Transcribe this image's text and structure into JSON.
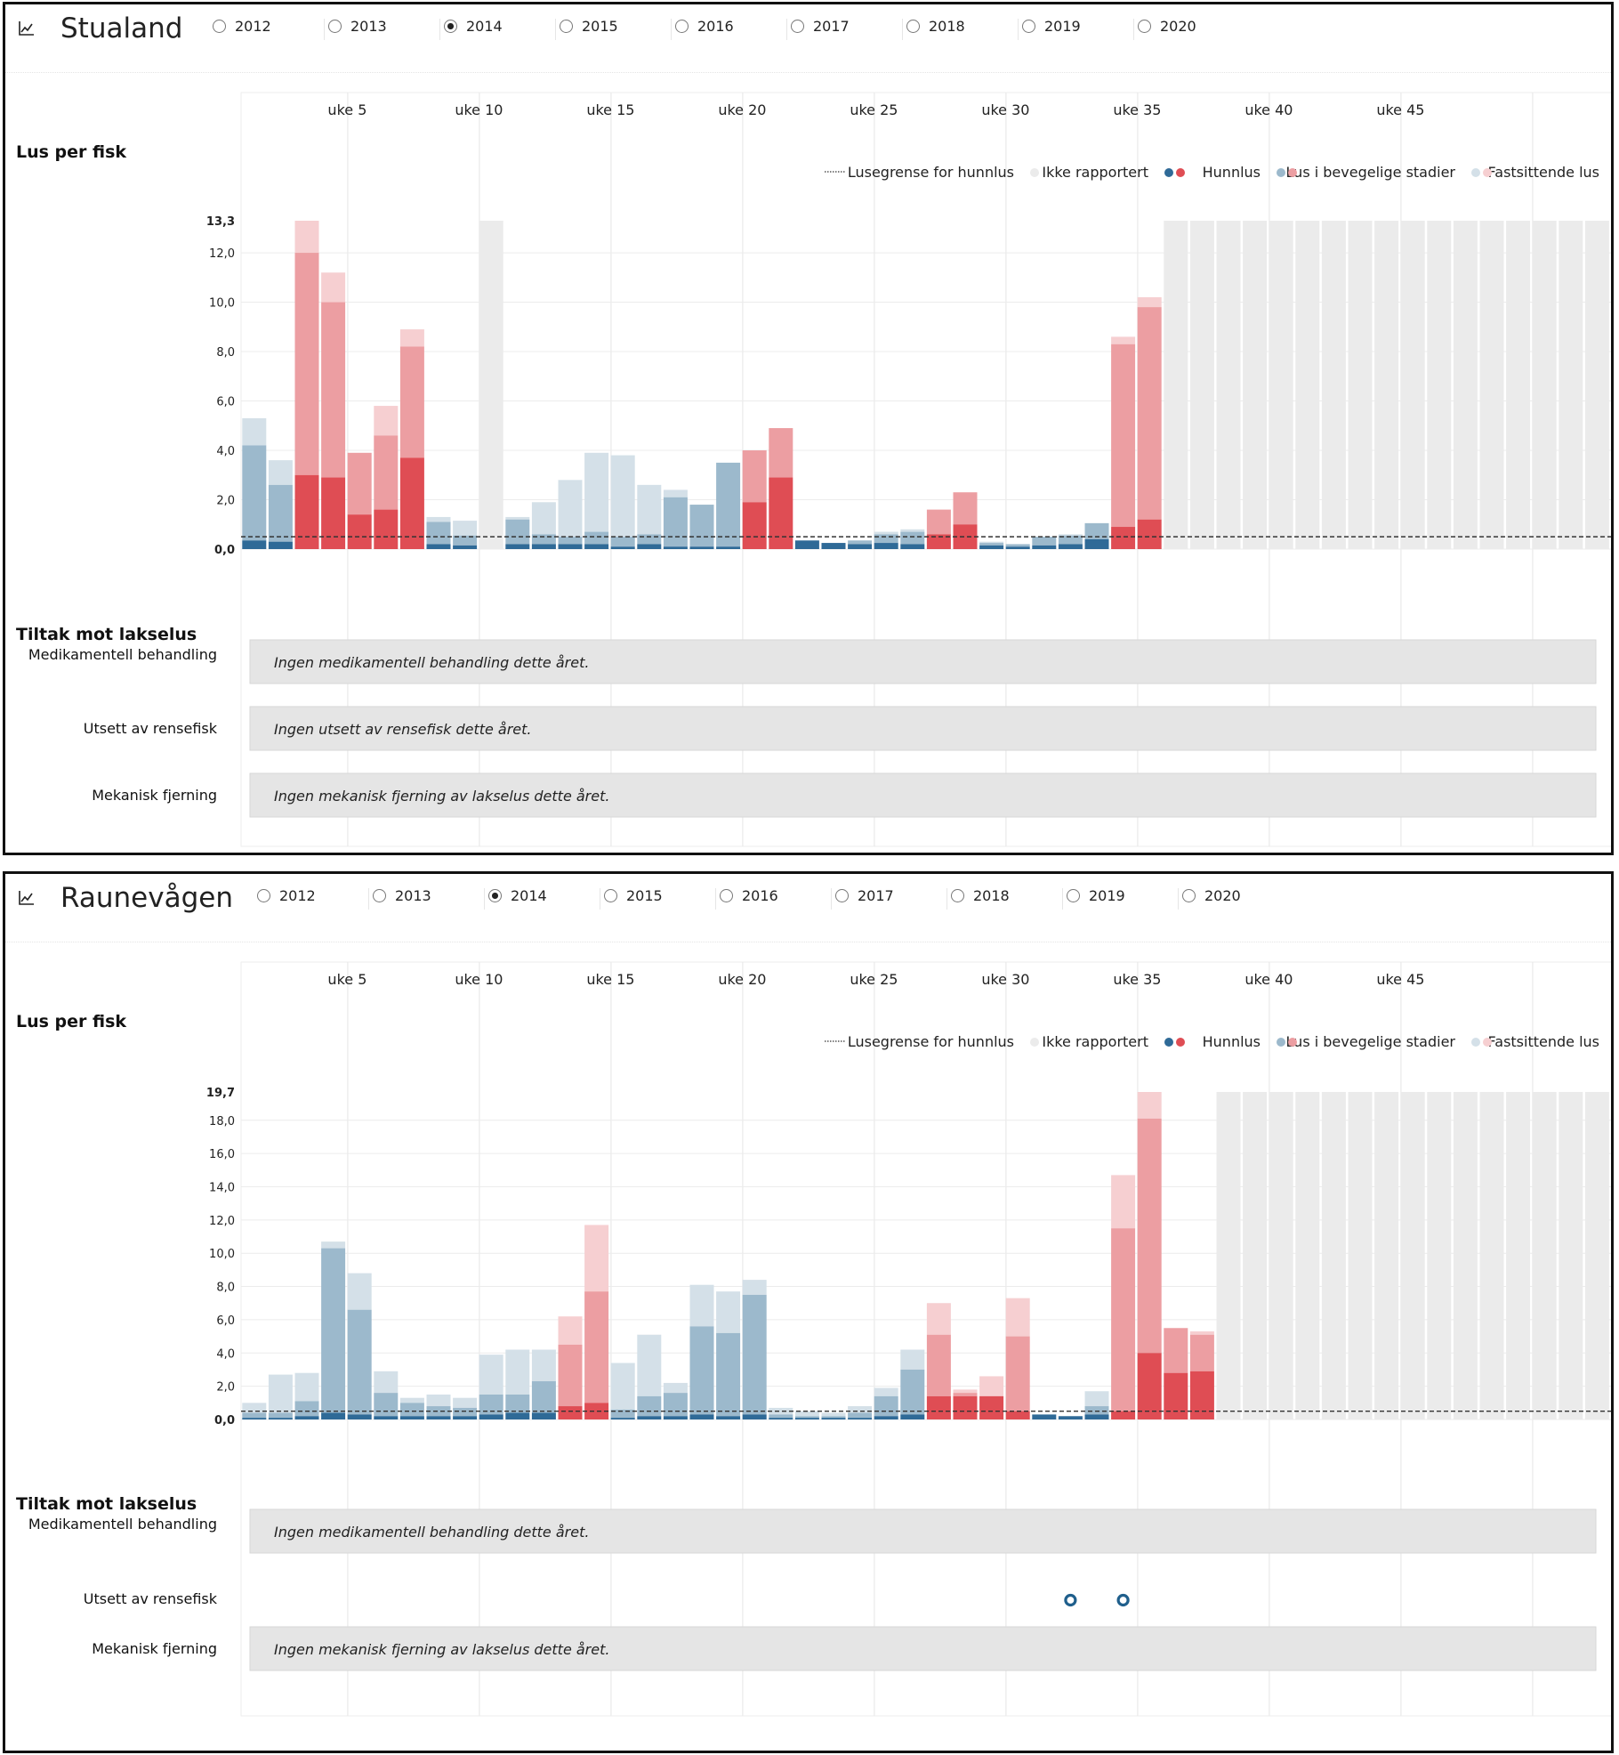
{
  "panels": [
    {
      "site": "Stualand",
      "icon": "line-chart-icon",
      "years": [
        "2012",
        "2013",
        "2014",
        "2015",
        "2016",
        "2017",
        "2018",
        "2019",
        "2020"
      ],
      "selected_year": "2014",
      "lus_label": "Lus per fisk",
      "week_labels": [
        "uke 5",
        "uke 10",
        "uke 15",
        "uke 20",
        "uke 25",
        "uke 30",
        "uke 35",
        "uke 40",
        "uke 45"
      ],
      "legend": {
        "limit": "Lusegrense for hunnlus",
        "not_reported": "Ikke rapportert",
        "female": "Hunnlus",
        "mobile": "Lus i bevegelige stadier",
        "attached": "Fastsittende lus"
      },
      "tiltak_label": "Tiltak mot lakselus",
      "rows": {
        "med": {
          "label": "Medikamentell behandling",
          "text": "Ingen medikamentell behandling dette året."
        },
        "rense": {
          "label": "Utsett av rensefisk",
          "text": "Ingen utsett av rensefisk dette året."
        },
        "mek": {
          "label": "Mekanisk fjerning",
          "text": "Ingen mekanisk fjerning av lakselus dette året."
        }
      },
      "chart_data": {
        "type": "bar",
        "stacked": true,
        "x_label_prefix": "uke",
        "x": [
          1,
          2,
          3,
          4,
          5,
          6,
          7,
          8,
          9,
          10,
          11,
          12,
          13,
          14,
          15,
          16,
          17,
          18,
          19,
          20,
          21,
          22,
          23,
          24,
          25,
          26,
          27,
          28,
          29,
          30,
          31,
          32,
          33,
          34,
          35,
          36,
          37,
          38,
          39,
          40,
          41,
          42,
          43,
          44,
          45,
          46,
          47,
          48,
          49,
          50,
          51,
          52
        ],
        "y_max_label": "13,3",
        "y_ticks": [
          "0,0",
          "2,0",
          "4,0",
          "6,0",
          "8,0",
          "10,0",
          "12,0"
        ],
        "ylim": [
          0,
          13.3
        ],
        "limit_value": 0.5,
        "series_names": [
          "Hunnlus",
          "Lus i bevegelige stadier",
          "Fastsittende lus"
        ],
        "female": [
          0.35,
          0.3,
          3.0,
          2.9,
          1.4,
          1.6,
          3.7,
          0.2,
          0.15,
          null,
          0.2,
          0.2,
          0.2,
          0.2,
          0.1,
          0.2,
          0.1,
          0.1,
          0.1,
          1.9,
          2.9,
          0.35,
          0.25,
          0.2,
          0.25,
          0.2,
          0.6,
          1.0,
          0.15,
          0.1,
          0.15,
          0.2,
          0.4,
          0.9,
          1.2,
          null,
          null,
          null,
          null,
          null,
          null,
          null,
          null,
          null,
          null,
          null,
          null,
          null,
          null,
          null,
          null,
          null
        ],
        "mobile": [
          3.85,
          2.3,
          9.0,
          7.1,
          2.5,
          3.0,
          4.5,
          0.9,
          0.4,
          null,
          1.0,
          0.4,
          0.3,
          0.5,
          0.4,
          0.4,
          2.0,
          1.7,
          3.4,
          2.1,
          2.0,
          0.0,
          0.0,
          0.15,
          0.35,
          0.5,
          1.0,
          1.3,
          0.1,
          0.1,
          0.35,
          0.35,
          0.65,
          7.4,
          8.6,
          null,
          null,
          null,
          null,
          null,
          null,
          null,
          null,
          null,
          null,
          null,
          null,
          null,
          null,
          null,
          null,
          null
        ],
        "attached": [
          1.1,
          1.0,
          1.3,
          1.2,
          0.0,
          1.2,
          0.7,
          0.2,
          0.6,
          null,
          0.1,
          1.3,
          2.3,
          3.2,
          3.3,
          2.0,
          0.3,
          0.0,
          0.0,
          0.0,
          0.0,
          0.0,
          0.0,
          0.0,
          0.1,
          0.1,
          0.0,
          0.0,
          0.05,
          0.0,
          0.0,
          0.05,
          0.0,
          0.3,
          0.4,
          null,
          null,
          null,
          null,
          null,
          null,
          null,
          null,
          null,
          null,
          null,
          null,
          null,
          null,
          null,
          null,
          null
        ],
        "not_reported": [
          10,
          36,
          37,
          38,
          39,
          40,
          41,
          42,
          43,
          44,
          45,
          46,
          47,
          48,
          49,
          50,
          51,
          52
        ]
      },
      "colors": {
        "female_dark": "#2f6a97",
        "female_red": "#df4d54",
        "mobile_blue": "#9cb9cc",
        "mobile_red": "#ec9ea2",
        "attached_blue": "#d4e0e8",
        "attached_red": "#f6cfd1",
        "not_reported": "#ebebeb"
      },
      "treatment_markers": []
    },
    {
      "site": "Raunevågen",
      "icon": "line-chart-icon",
      "years": [
        "2012",
        "2013",
        "2014",
        "2015",
        "2016",
        "2017",
        "2018",
        "2019",
        "2020"
      ],
      "selected_year": "2014",
      "lus_label": "Lus per fisk",
      "week_labels": [
        "uke 5",
        "uke 10",
        "uke 15",
        "uke 20",
        "uke 25",
        "uke 30",
        "uke 35",
        "uke 40",
        "uke 45"
      ],
      "legend": {
        "limit": "Lusegrense for hunnlus",
        "not_reported": "Ikke rapportert",
        "female": "Hunnlus",
        "mobile": "Lus i bevegelige stadier",
        "attached": "Fastsittende lus"
      },
      "tiltak_label": "Tiltak mot lakselus",
      "rows": {
        "med": {
          "label": "Medikamentell behandling",
          "text": "Ingen medikamentell behandling dette året."
        },
        "rense": {
          "label": "Utsett av rensefisk",
          "text": ""
        },
        "mek": {
          "label": "Mekanisk fjerning",
          "text": "Ingen mekanisk fjerning av lakselus dette året."
        }
      },
      "chart_data": {
        "type": "bar",
        "stacked": true,
        "x_label_prefix": "uke",
        "x": [
          1,
          2,
          3,
          4,
          5,
          6,
          7,
          8,
          9,
          10,
          11,
          12,
          13,
          14,
          15,
          16,
          17,
          18,
          19,
          20,
          21,
          22,
          23,
          24,
          25,
          26,
          27,
          28,
          29,
          30,
          31,
          32,
          33,
          34,
          35,
          36,
          37,
          38,
          39,
          40,
          41,
          42,
          43,
          44,
          45,
          46,
          47,
          48,
          49,
          50,
          51,
          52
        ],
        "y_max_label": "19,7",
        "y_ticks": [
          "0,0",
          "2,0",
          "4,0",
          "6,0",
          "8,0",
          "10,0",
          "12,0",
          "14,0",
          "16,0",
          "18,0"
        ],
        "ylim": [
          0,
          19.7
        ],
        "limit_value": 0.5,
        "series_names": [
          "Hunnlus",
          "Lus i bevegelige stadier",
          "Fastsittende lus"
        ],
        "female": [
          0.1,
          0.1,
          0.2,
          0.4,
          0.3,
          0.2,
          0.2,
          0.2,
          0.2,
          0.3,
          0.4,
          0.4,
          0.8,
          1.0,
          0.1,
          0.2,
          0.2,
          0.3,
          0.2,
          0.3,
          0.1,
          0.1,
          0.1,
          0.1,
          0.2,
          0.3,
          1.4,
          1.4,
          1.4,
          0.5,
          0.3,
          0.2,
          0.3,
          0.5,
          4.0,
          2.8,
          2.9,
          null,
          null,
          null,
          null,
          null,
          null,
          null,
          null,
          null,
          null,
          null,
          null,
          null,
          null,
          null
        ],
        "mobile": [
          0.3,
          0.3,
          0.9,
          9.9,
          6.3,
          1.4,
          0.8,
          0.6,
          0.5,
          1.2,
          1.1,
          1.9,
          3.7,
          6.7,
          0.5,
          1.2,
          1.4,
          5.3,
          5.0,
          7.2,
          0.2,
          0.1,
          0.1,
          0.3,
          1.2,
          2.7,
          3.7,
          0.2,
          0.0,
          4.5,
          0.0,
          0.0,
          0.5,
          11.0,
          14.1,
          2.7,
          2.2,
          null,
          null,
          null,
          null,
          null,
          null,
          null,
          null,
          null,
          null,
          null,
          null,
          null,
          null,
          null
        ],
        "attached": [
          0.6,
          2.3,
          1.7,
          0.4,
          2.2,
          1.3,
          0.3,
          0.7,
          0.6,
          2.4,
          2.7,
          1.9,
          1.7,
          4.0,
          2.8,
          3.7,
          0.6,
          2.5,
          2.5,
          0.9,
          0.4,
          0.3,
          0.2,
          0.4,
          0.5,
          1.2,
          1.9,
          0.2,
          1.2,
          2.3,
          0.0,
          0.0,
          0.9,
          3.2,
          1.6,
          0.0,
          0.2,
          null,
          null,
          null,
          null,
          null,
          null,
          null,
          null,
          null,
          null,
          null,
          null,
          null,
          null,
          null
        ],
        "not_reported": [
          38,
          39,
          40,
          41,
          42,
          43,
          44,
          45,
          46,
          47,
          48,
          49,
          50,
          51,
          52
        ]
      },
      "colors": {
        "female_dark": "#2f6a97",
        "female_red": "#df4d54",
        "mobile_blue": "#9cb9cc",
        "mobile_red": "#ec9ea2",
        "attached_blue": "#d4e0e8",
        "attached_red": "#f6cfd1",
        "not_reported": "#ebebeb"
      },
      "treatment_markers": [
        {
          "row": "rense",
          "week": 32
        },
        {
          "row": "rense",
          "week": 34
        }
      ]
    }
  ]
}
